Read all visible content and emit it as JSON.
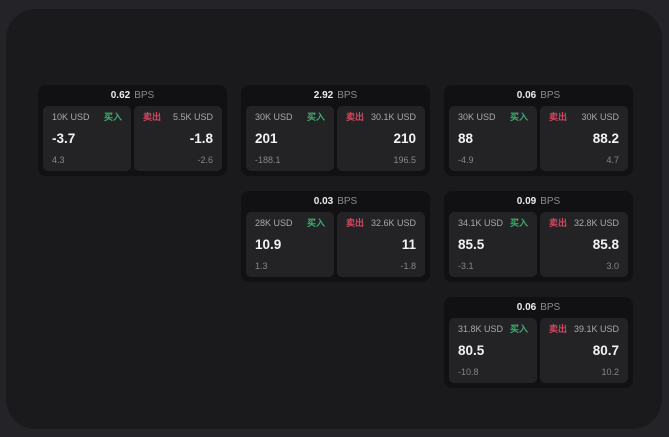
{
  "labels": {
    "bps": "BPS",
    "buy": "买入",
    "sell": "卖出"
  },
  "colors": {
    "buy_green": "#3fae6e",
    "sell_red": "#d1495f",
    "panel_bg": "#1a1a1c",
    "outer_bg": "#242428",
    "card_bg": "#111113",
    "tile_bg": "#232326"
  },
  "cards": [
    {
      "row": 1,
      "col": 1,
      "bps": "0.62",
      "buy": {
        "amount": "10K USD",
        "value": "-3.7",
        "sub": "4.3"
      },
      "sell": {
        "amount": "5.5K USD",
        "value": "-1.8",
        "sub": "-2.6"
      }
    },
    {
      "row": 1,
      "col": 2,
      "bps": "2.92",
      "buy": {
        "amount": "30K USD",
        "value": "201",
        "sub": "-188.1"
      },
      "sell": {
        "amount": "30.1K USD",
        "value": "210",
        "sub": "196.5"
      }
    },
    {
      "row": 1,
      "col": 3,
      "bps": "0.06",
      "buy": {
        "amount": "30K USD",
        "value": "88",
        "sub": "-4.9"
      },
      "sell": {
        "amount": "30K USD",
        "value": "88.2",
        "sub": "4.7"
      }
    },
    {
      "row": 2,
      "col": 2,
      "bps": "0.03",
      "buy": {
        "amount": "28K USD",
        "value": "10.9",
        "sub": "1.3"
      },
      "sell": {
        "amount": "32.6K USD",
        "value": "11",
        "sub": "-1.8"
      }
    },
    {
      "row": 2,
      "col": 3,
      "bps": "0.09",
      "buy": {
        "amount": "34.1K USD",
        "value": "85.5",
        "sub": "-3.1"
      },
      "sell": {
        "amount": "32.8K USD",
        "value": "85.8",
        "sub": "3.0"
      }
    },
    {
      "row": 3,
      "col": 3,
      "bps": "0.06",
      "buy": {
        "amount": "31.8K USD",
        "value": "80.5",
        "sub": "-10.8"
      },
      "sell": {
        "amount": "39.1K USD",
        "value": "80.7",
        "sub": "10.2"
      }
    }
  ]
}
